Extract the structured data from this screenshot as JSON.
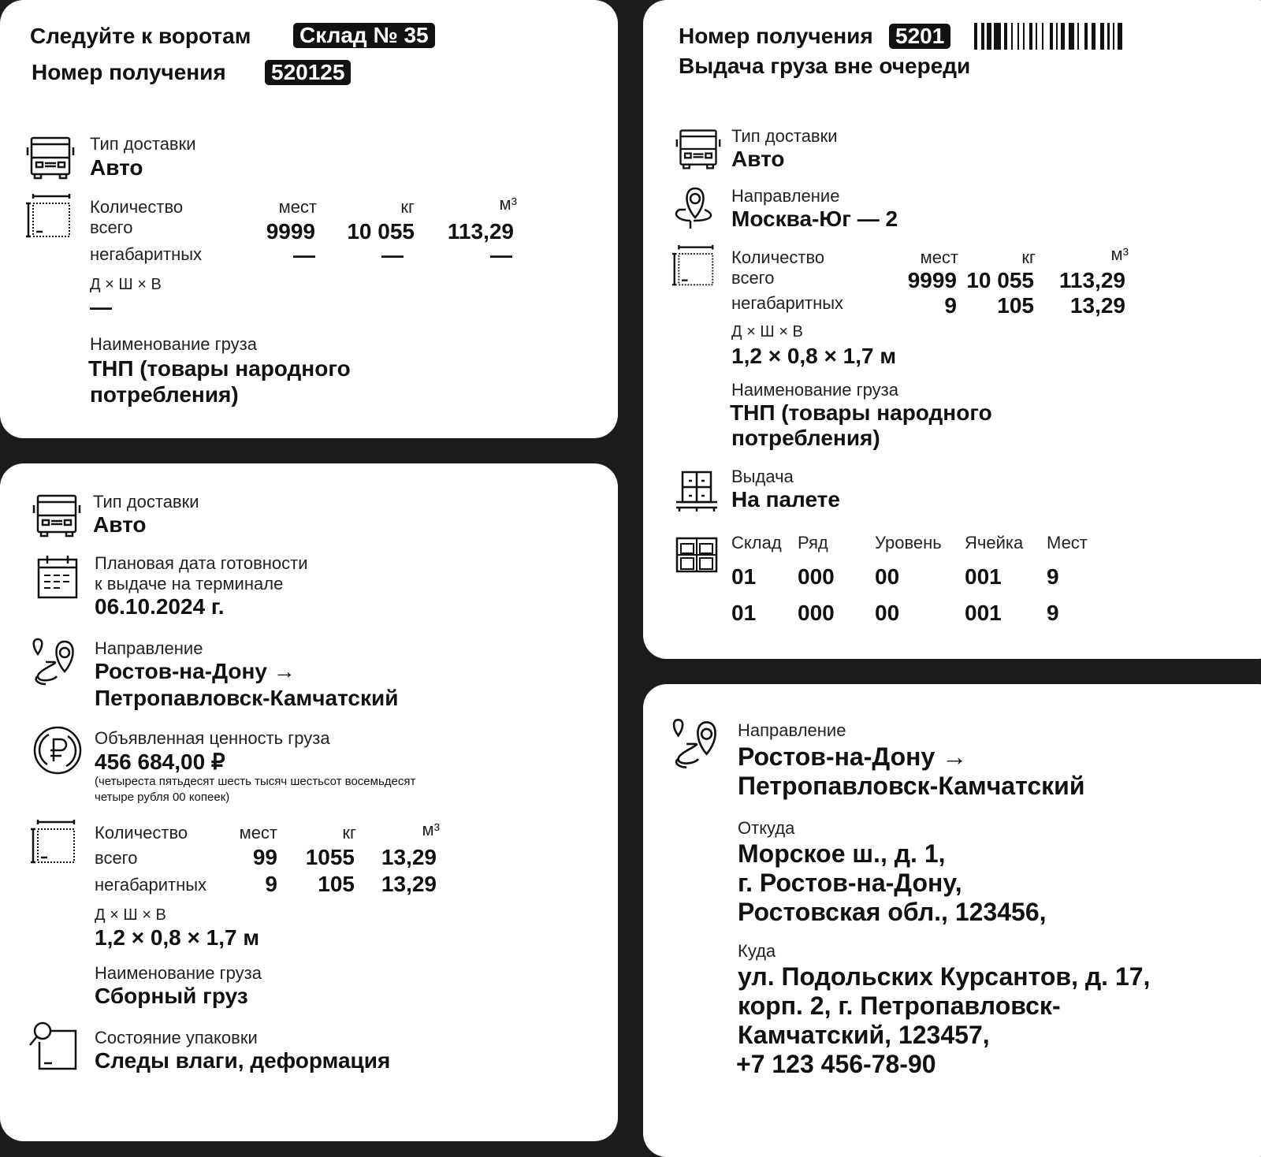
{
  "card1": {
    "gate_label": "Следуйте к воротам",
    "gate_badge": "Склад № 35",
    "receipt_label": "Номер получения",
    "receipt_badge": "520125",
    "delivery_label": "Тип доставки",
    "delivery_value": "Авто",
    "qty_label": "Количество",
    "col_places": "мест",
    "col_kg": "кг",
    "col_m3": "м³",
    "row_total": "всего",
    "total": {
      "places": "9999",
      "kg": "10 055",
      "m3": "113,29"
    },
    "row_oversize": "негабаритных",
    "oversize": {
      "places": "—",
      "kg": "—",
      "m3": "—"
    },
    "dims_label": "Д × Ш × В",
    "dims_value": "—",
    "cargo_label": "Наименование груза",
    "cargo_line1": "ТНП (товары народного",
    "cargo_line2": "потребления)"
  },
  "card2": {
    "delivery_label": "Тип доставки",
    "delivery_value": "Авто",
    "date_label1": "Плановая дата готовности",
    "date_label2": "к выдаче на терминале",
    "date_value": "06.10.2024 г.",
    "direction_label": "Направление",
    "direction_line1": "Ростов-на-Дону →",
    "direction_line2": "Петропавловск-Камчатский",
    "value_label": "Объявленная ценность груза",
    "value_amount": "456 684,00 ₽",
    "value_words1": "(четыреста пятьдесят шесть тысяч шестьсот восемьдесят",
    "value_words2": "четыре рубля 00 копеек)",
    "qty_label": "Количество",
    "col_places": "мест",
    "col_kg": "кг",
    "col_m3": "м³",
    "row_total": "всего",
    "total": {
      "places": "99",
      "kg": "1055",
      "m3": "13,29"
    },
    "row_oversize": "негабаритных",
    "oversize": {
      "places": "9",
      "kg": "105",
      "m3": "13,29"
    },
    "dims_label": "Д × Ш × В",
    "dims_value": "1,2 × 0,8 × 1,7 м",
    "cargo_label": "Наименование груза",
    "cargo_value": "Сборный груз",
    "pack_label": "Состояние упаковки",
    "pack_value": "Следы влаги, деформация"
  },
  "card3": {
    "receipt_label": "Номер получения",
    "receipt_badge": "5201",
    "priority": "Выдача груза вне очереди",
    "delivery_label": "Тип доставки",
    "delivery_value": "Авто",
    "direction_label": "Направление",
    "direction_value": "Москва-Юг — 2",
    "qty_label": "Количество",
    "col_places": "мест",
    "col_kg": "кг",
    "col_m3": "м³",
    "row_total": "всего",
    "total": {
      "places": "9999",
      "kg": "10 055",
      "m3": "113,29"
    },
    "row_oversize": "негабаритных",
    "oversize": {
      "places": "9",
      "kg": "105",
      "m3": "13,29"
    },
    "dims_label": "Д × Ш × В",
    "dims_value": "1,2 × 0,8 × 1,7 м",
    "cargo_label": "Наименование груза",
    "cargo_line1": "ТНП (товары народного",
    "cargo_line2": "потребления)",
    "issue_label": "Выдача",
    "issue_value": "На палете",
    "loc_headers": [
      "Склад",
      "Ряд",
      "Уровень",
      "Ячейка",
      "Мест"
    ],
    "loc_rows": [
      [
        "01",
        "000",
        "00",
        "001",
        "9"
      ],
      [
        "01",
        "000",
        "00",
        "001",
        "9"
      ]
    ]
  },
  "card4": {
    "direction_label": "Направление",
    "direction_line1": "Ростов-на-Дону →",
    "direction_line2": "Петропавловск-Камчатский",
    "from_label": "Откуда",
    "from_lines": [
      "Морское ш., д. 1,",
      "г. Ростов-на-Дону,",
      "Ростовская обл., 123456,"
    ],
    "to_label": "Куда",
    "to_lines": [
      "ул. Подольских Курсантов, д. 17,",
      "корп. 2, г. Петропавловск-",
      "Камчатский, 123457,",
      "+7 123 456-78-90"
    ]
  }
}
